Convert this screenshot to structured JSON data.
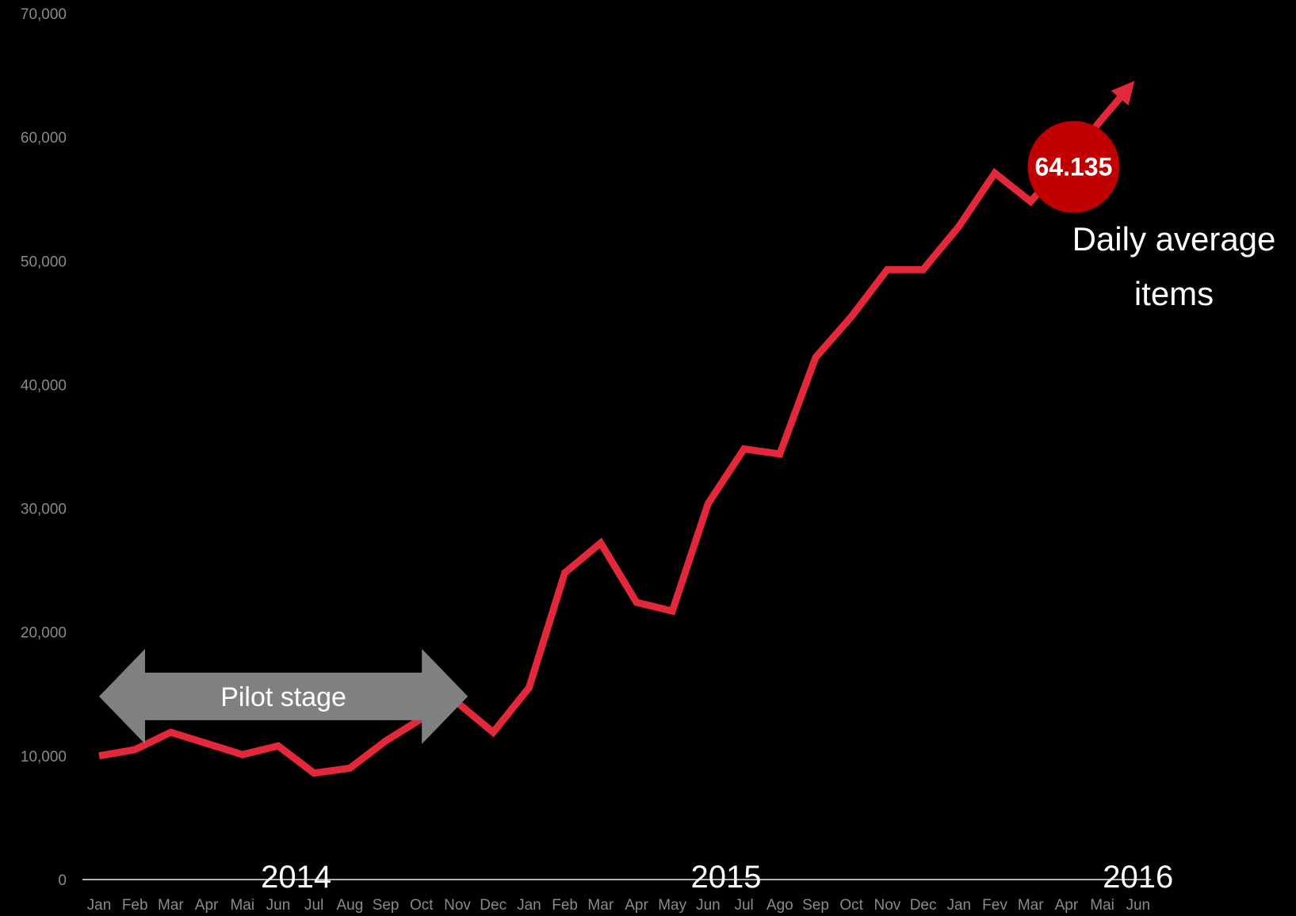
{
  "colors": {
    "background": "#000000",
    "line": "#e3283c",
    "badge": "#c00000",
    "arrow": "#808080",
    "tick_text": "#8a8a8a",
    "axis": "#b0b0b0",
    "label_text": "#ffffff"
  },
  "chart_data": {
    "type": "line",
    "title": "",
    "xlabel": "",
    "ylabel": "",
    "ylim": [
      0,
      70000
    ],
    "yticks": [
      "0",
      "10,000",
      "20,000",
      "30,000",
      "40,000",
      "50,000",
      "60,000",
      "70,000"
    ],
    "grid": false,
    "categories": [
      "Jan",
      "Feb",
      "Mar",
      "Apr",
      "Mai",
      "Jun",
      "Jul",
      "Aug",
      "Sep",
      "Oct",
      "Nov",
      "Dec",
      "Jan",
      "Feb",
      "Mar",
      "Apr",
      "May",
      "Jun",
      "Jul",
      "Ago",
      "Sep",
      "Oct",
      "Nov",
      "Dec",
      "Jan",
      "Fev",
      "Mar",
      "Apr",
      "Mai",
      "Jun"
    ],
    "year_labels": [
      {
        "label": "2014",
        "category_index": 5.5
      },
      {
        "label": "2015",
        "category_index": 17.5
      },
      {
        "label": "2016",
        "category_index": 29.0
      }
    ],
    "series": [
      {
        "values": [
          10000,
          10500,
          11900,
          11000,
          10100,
          10800,
          8600,
          9000,
          11200,
          13000,
          14300,
          11900,
          15500,
          24800,
          27200,
          22400,
          21700,
          30400,
          34800,
          34400,
          42200,
          45500,
          49300,
          49300,
          52800,
          57100,
          54800,
          58000,
          61500,
          64135
        ]
      }
    ],
    "annotations": {
      "pilot_stage": {
        "label": "Pilot stage",
        "start_index": 0,
        "end_index": 11,
        "y": 14800
      },
      "badge": {
        "value_label": "64.135",
        "category_index": 27.2,
        "y": 57600
      },
      "note": {
        "line1": "Daily average",
        "line2": "items"
      }
    }
  }
}
